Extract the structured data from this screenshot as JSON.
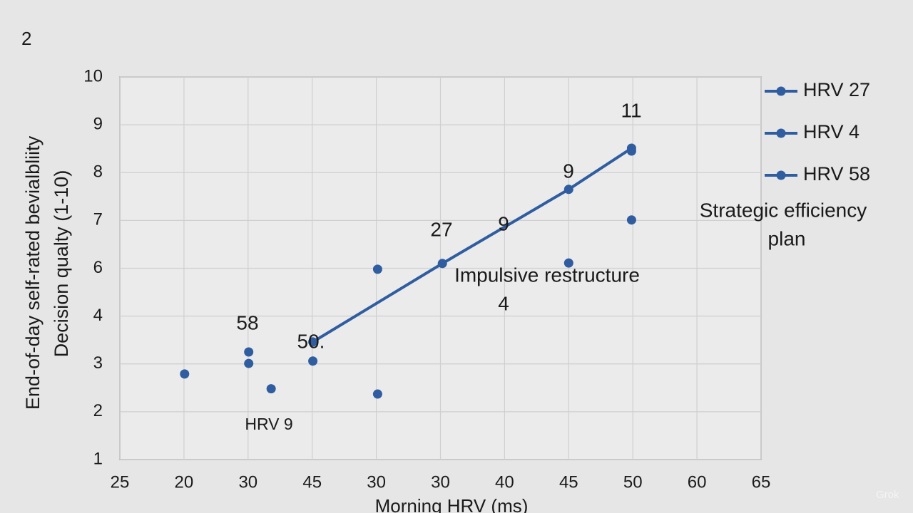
{
  "page_label": "2",
  "watermark": "Grok",
  "chart_data": {
    "type": "scatter",
    "ylabel": [
      "End-of-day self-rated bevialbliity",
      "Decision qualty (1-10)"
    ],
    "xlabel": "Morning HRV (ms)",
    "xlim": [
      0,
      10
    ],
    "xticks": [
      {
        "value": 0,
        "label": "25"
      },
      {
        "value": 1,
        "label": "20"
      },
      {
        "value": 2,
        "label": "30"
      },
      {
        "value": 3,
        "label": "45"
      },
      {
        "value": 4,
        "label": "30"
      },
      {
        "value": 5,
        "label": "30"
      },
      {
        "value": 6,
        "label": "40"
      },
      {
        "value": 7,
        "label": "45"
      },
      {
        "value": 8,
        "label": "50"
      },
      {
        "value": 9,
        "label": "60"
      },
      {
        "value": 10,
        "label": "65"
      }
    ],
    "ylim": [
      0,
      8
    ],
    "yticks": [
      {
        "value": 0,
        "label": "1"
      },
      {
        "value": 1,
        "label": "2"
      },
      {
        "value": 2,
        "label": "3"
      },
      {
        "value": 3,
        "label": "4"
      },
      {
        "value": 4,
        "label": "6"
      },
      {
        "value": 5,
        "label": "7"
      },
      {
        "value": 6,
        "label": "8"
      },
      {
        "value": 7,
        "label": "9"
      },
      {
        "value": 8,
        "label": "10"
      }
    ],
    "grid": true,
    "legend": "right",
    "series": [
      {
        "name": "HRV 27",
        "color": "#2f5d9f",
        "line": true,
        "x": [
          3.01,
          5.03,
          7.0,
          7.98
        ],
        "values": [
          2.46,
          4.1,
          5.65,
          6.51
        ]
      },
      {
        "name": "HRV 4",
        "color": "#2f5d9f",
        "line": false,
        "x": [
          1.01,
          2.01,
          2.01,
          3.01,
          4.02,
          4.02
        ],
        "values": [
          1.79,
          2.25,
          2.01,
          2.06,
          3.98,
          1.37
        ]
      },
      {
        "name": "HRV 58",
        "color": "#2f5d9f",
        "line": false,
        "x": [
          2.36,
          7.0,
          7.98,
          7.98
        ],
        "values": [
          1.48,
          4.11,
          5.01,
          6.45
        ]
      }
    ],
    "annotations": [
      "11",
      "9",
      "27",
      "9",
      "Impulsive restructure",
      "4",
      "58",
      "50.",
      "HRV 9",
      "Strategic efficiency",
      "plan"
    ]
  }
}
